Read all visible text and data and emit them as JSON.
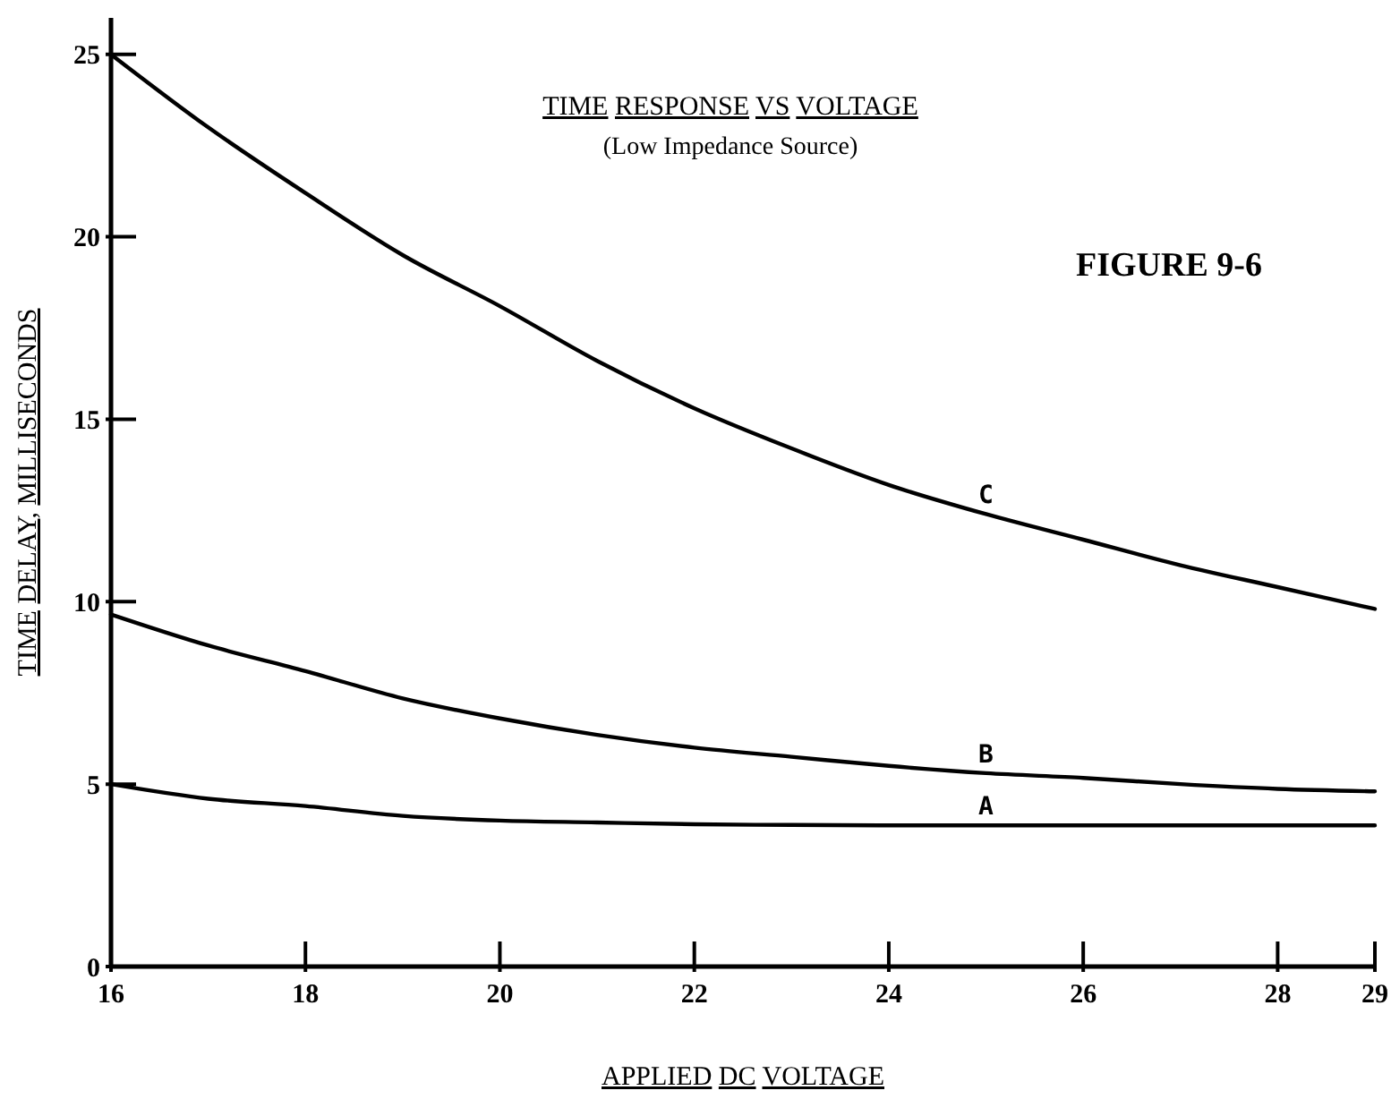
{
  "chart_data": {
    "type": "line",
    "title": "TIME RESPONSE VS VOLTAGE",
    "subtitle": "(Low Impedance Source)",
    "xlabel": "APPLIED DC VOLTAGE",
    "ylabel": "TIME DELAY, MILLISECONDS",
    "x": [
      16,
      17,
      18,
      19,
      20,
      21,
      22,
      23,
      24,
      25,
      26,
      27,
      28,
      29
    ],
    "series": [
      {
        "name": "A",
        "color": "#000000",
        "values": [
          5.0,
          4.6,
          4.4,
          4.13,
          4.0,
          3.95,
          3.9,
          3.88,
          3.87,
          3.87,
          3.87,
          3.87,
          3.87,
          3.87
        ]
      },
      {
        "name": "B",
        "color": "#000000",
        "values": [
          9.65,
          8.8,
          8.1,
          7.35,
          6.8,
          6.35,
          6.0,
          5.75,
          5.5,
          5.3,
          5.17,
          5.0,
          4.87,
          4.8
        ]
      },
      {
        "name": "C",
        "color": "#000000",
        "values": [
          25,
          23.0,
          21.2,
          19.5,
          18.1,
          16.6,
          15.3,
          14.2,
          13.2,
          12.4,
          11.7,
          11.0,
          10.4,
          9.8
        ]
      }
    ],
    "xlim": [
      16,
      29
    ],
    "ylim": [
      0,
      26
    ],
    "xticks": [
      16,
      18,
      20,
      22,
      24,
      26,
      28,
      29
    ],
    "yticks": [
      0,
      5,
      10,
      15,
      20,
      25
    ],
    "grid": false,
    "marker": "none",
    "line_style": "solid",
    "annotations": [
      "FIGURE 9-6"
    ]
  }
}
